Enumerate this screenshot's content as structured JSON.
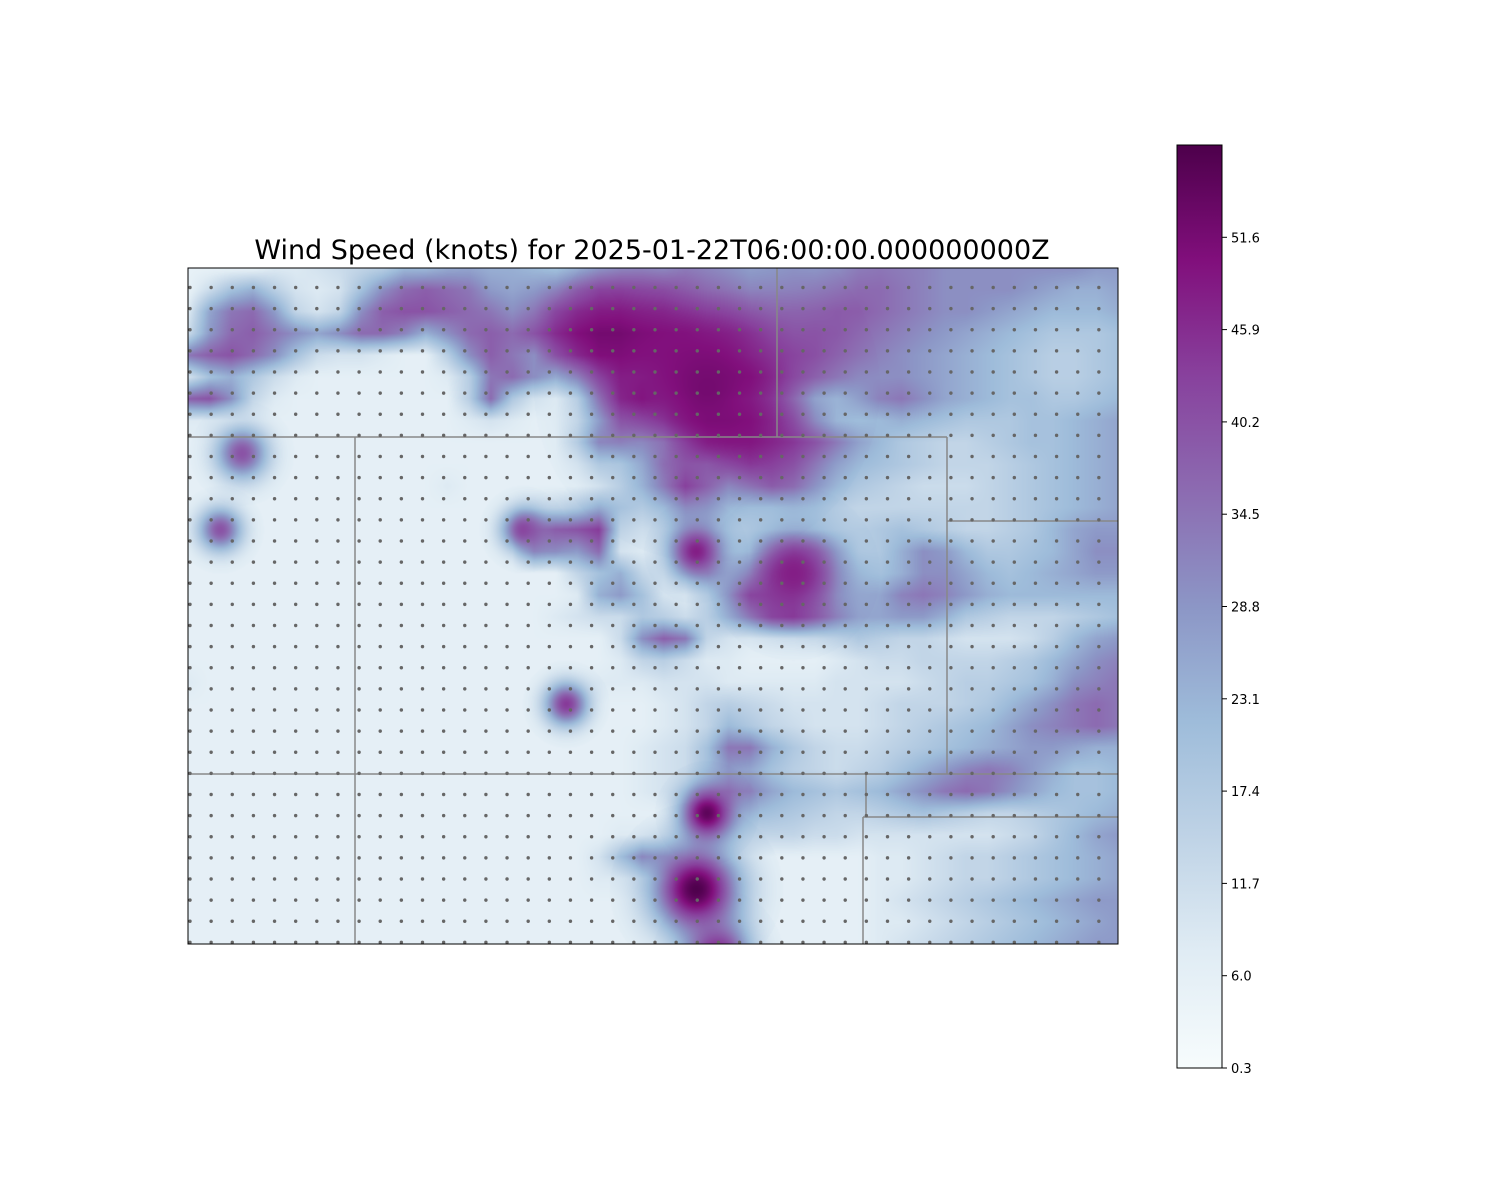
{
  "chart_data": {
    "type": "heatmap",
    "title": "Wind Speed (knots) for 2025-01-22T06:00:00.000000000Z",
    "xlabel": "",
    "ylabel": "",
    "colorbar": {
      "min": 0.3,
      "max": 57.3,
      "ticks": [
        0.3,
        6.0,
        11.7,
        17.4,
        23.1,
        28.8,
        34.5,
        40.2,
        45.9,
        51.6
      ],
      "tick_labels": [
        "0.3",
        "6.0",
        "11.7",
        "17.4",
        "23.1",
        "28.8",
        "34.5",
        "40.2",
        "45.9",
        "51.6"
      ],
      "colormap": "BuPu",
      "colors": [
        "#f7fcfd",
        "#e0ecf4",
        "#bfd3e6",
        "#9ebcda",
        "#8c96c6",
        "#8c6bb1",
        "#88419d",
        "#810f7c",
        "#4d004b"
      ]
    },
    "grid_points": {
      "columns": 44,
      "rows": 32,
      "marker_color": "#666666"
    },
    "boundary_color": "#888888",
    "field_description_rows": [
      [
        5,
        5,
        5,
        5,
        8,
        8,
        10,
        12,
        14,
        16,
        22,
        22,
        25,
        26,
        24,
        24,
        22,
        20,
        24,
        28,
        30,
        30,
        28,
        30,
        28,
        26,
        24,
        26,
        28,
        28,
        30,
        33,
        34,
        33,
        32,
        30,
        30,
        30,
        30,
        30,
        30,
        30,
        28,
        28
      ],
      [
        5,
        12,
        20,
        24,
        16,
        10,
        8,
        10,
        20,
        30,
        36,
        38,
        36,
        34,
        28,
        26,
        28,
        32,
        38,
        42,
        42,
        40,
        38,
        34,
        30,
        28,
        26,
        28,
        30,
        32,
        34,
        36,
        36,
        34,
        32,
        30,
        30,
        30,
        30,
        28,
        26,
        24,
        24,
        26
      ],
      [
        8,
        26,
        34,
        36,
        28,
        14,
        10,
        14,
        30,
        38,
        40,
        40,
        38,
        36,
        34,
        30,
        34,
        42,
        46,
        48,
        48,
        46,
        44,
        40,
        36,
        34,
        32,
        32,
        34,
        36,
        38,
        38,
        36,
        34,
        32,
        30,
        30,
        28,
        26,
        24,
        22,
        22,
        22,
        24
      ],
      [
        12,
        28,
        36,
        38,
        34,
        30,
        26,
        30,
        36,
        36,
        32,
        24,
        30,
        36,
        38,
        36,
        40,
        46,
        50,
        52,
        52,
        50,
        48,
        46,
        42,
        40,
        38,
        36,
        36,
        38,
        38,
        36,
        34,
        32,
        30,
        28,
        26,
        24,
        22,
        20,
        18,
        18,
        18,
        20
      ],
      [
        34,
        38,
        40,
        36,
        30,
        20,
        12,
        10,
        10,
        8,
        6,
        6,
        16,
        30,
        38,
        34,
        30,
        40,
        46,
        50,
        50,
        48,
        46,
        44,
        42,
        40,
        38,
        38,
        38,
        38,
        36,
        34,
        32,
        30,
        28,
        26,
        24,
        22,
        20,
        18,
        16,
        16,
        18,
        20
      ],
      [
        10,
        20,
        24,
        18,
        12,
        8,
        6,
        6,
        6,
        6,
        6,
        6,
        8,
        16,
        34,
        36,
        30,
        24,
        30,
        40,
        46,
        44,
        42,
        40,
        40,
        42,
        44,
        40,
        36,
        34,
        32,
        30,
        30,
        30,
        28,
        26,
        24,
        22,
        20,
        18,
        16,
        16,
        18,
        20
      ],
      [
        38,
        40,
        30,
        14,
        8,
        6,
        6,
        6,
        6,
        6,
        6,
        6,
        6,
        16,
        36,
        18,
        10,
        6,
        12,
        30,
        44,
        46,
        38,
        32,
        30,
        34,
        38,
        36,
        28,
        20,
        20,
        26,
        32,
        34,
        30,
        26,
        24,
        22,
        20,
        20,
        18,
        18,
        20,
        22
      ],
      [
        8,
        8,
        6,
        6,
        6,
        6,
        6,
        6,
        6,
        6,
        6,
        6,
        6,
        8,
        10,
        8,
        6,
        6,
        10,
        22,
        34,
        32,
        30,
        36,
        44,
        46,
        46,
        42,
        36,
        26,
        20,
        20,
        22,
        24,
        22,
        20,
        18,
        18,
        18,
        20,
        20,
        22,
        24,
        26
      ],
      [
        6,
        6,
        6,
        6,
        6,
        6,
        6,
        6,
        6,
        6,
        6,
        6,
        6,
        6,
        6,
        6,
        6,
        6,
        14,
        28,
        26,
        18,
        16,
        28,
        40,
        44,
        46,
        44,
        42,
        38,
        32,
        26,
        22,
        18,
        16,
        14,
        14,
        16,
        18,
        20,
        20,
        22,
        24,
        26
      ],
      [
        6,
        6,
        6,
        6,
        6,
        6,
        6,
        6,
        6,
        6,
        6,
        6,
        6,
        6,
        6,
        6,
        6,
        6,
        8,
        14,
        12,
        16,
        26,
        30,
        28,
        34,
        40,
        40,
        38,
        32,
        26,
        22,
        20,
        18,
        16,
        14,
        14,
        14,
        16,
        18,
        20,
        22,
        24,
        26
      ],
      [
        6,
        6,
        6,
        6,
        6,
        6,
        6,
        6,
        6,
        6,
        6,
        6,
        8,
        6,
        6,
        6,
        6,
        6,
        6,
        8,
        12,
        18,
        28,
        40,
        32,
        24,
        30,
        36,
        34,
        28,
        22,
        18,
        16,
        14,
        12,
        12,
        12,
        14,
        16,
        18,
        20,
        22,
        24,
        26
      ],
      [
        6,
        6,
        6,
        6,
        6,
        6,
        6,
        6,
        6,
        6,
        6,
        6,
        6,
        6,
        6,
        6,
        10,
        14,
        18,
        24,
        18,
        14,
        18,
        26,
        24,
        18,
        16,
        16,
        18,
        18,
        16,
        14,
        14,
        14,
        14,
        14,
        14,
        14,
        16,
        18,
        20,
        22,
        24,
        26
      ],
      [
        6,
        6,
        6,
        6,
        6,
        6,
        6,
        6,
        6,
        6,
        6,
        6,
        6,
        6,
        6,
        8,
        30,
        38,
        40,
        44,
        14,
        10,
        12,
        16,
        16,
        14,
        12,
        10,
        10,
        12,
        14,
        16,
        18,
        20,
        18,
        16,
        14,
        14,
        16,
        18,
        22,
        26,
        28,
        28
      ],
      [
        6,
        6,
        6,
        6,
        6,
        6,
        6,
        6,
        6,
        6,
        6,
        6,
        6,
        6,
        6,
        6,
        28,
        30,
        28,
        36,
        10,
        8,
        10,
        14,
        16,
        14,
        12,
        20,
        28,
        26,
        20,
        16,
        18,
        24,
        30,
        28,
        22,
        18,
        18,
        20,
        22,
        26,
        30,
        30
      ],
      [
        6,
        6,
        6,
        6,
        6,
        6,
        6,
        6,
        6,
        6,
        6,
        6,
        6,
        6,
        6,
        6,
        6,
        6,
        14,
        20,
        24,
        14,
        10,
        14,
        22,
        22,
        24,
        32,
        34,
        30,
        22,
        20,
        20,
        24,
        30,
        30,
        26,
        22,
        20,
        22,
        24,
        26,
        28,
        28
      ],
      [
        6,
        6,
        6,
        6,
        6,
        6,
        6,
        6,
        6,
        6,
        6,
        6,
        6,
        6,
        6,
        6,
        6,
        6,
        8,
        24,
        28,
        20,
        10,
        8,
        16,
        28,
        40,
        38,
        36,
        30,
        24,
        24,
        26,
        32,
        34,
        32,
        28,
        24,
        22,
        22,
        22,
        22,
        22,
        22
      ],
      [
        6,
        6,
        6,
        6,
        6,
        6,
        6,
        6,
        6,
        6,
        6,
        6,
        6,
        6,
        6,
        6,
        6,
        8,
        10,
        12,
        12,
        18,
        16,
        12,
        16,
        24,
        32,
        40,
        42,
        36,
        30,
        26,
        26,
        28,
        28,
        24,
        18,
        16,
        14,
        14,
        14,
        16,
        18,
        20
      ],
      [
        6,
        6,
        6,
        6,
        6,
        6,
        6,
        6,
        6,
        6,
        6,
        6,
        6,
        6,
        6,
        6,
        6,
        6,
        6,
        6,
        12,
        30,
        38,
        34,
        14,
        10,
        8,
        8,
        8,
        10,
        14,
        18,
        16,
        14,
        14,
        12,
        10,
        10,
        10,
        12,
        16,
        22,
        26,
        28
      ],
      [
        6,
        6,
        6,
        6,
        6,
        6,
        6,
        6,
        6,
        6,
        6,
        6,
        6,
        6,
        6,
        6,
        6,
        6,
        6,
        6,
        8,
        14,
        16,
        12,
        8,
        8,
        6,
        6,
        6,
        6,
        8,
        10,
        12,
        12,
        14,
        14,
        14,
        14,
        16,
        18,
        22,
        26,
        30,
        32
      ],
      [
        8,
        6,
        6,
        6,
        6,
        6,
        6,
        6,
        6,
        6,
        6,
        6,
        6,
        6,
        6,
        6,
        6,
        6,
        6,
        8,
        8,
        8,
        10,
        10,
        10,
        8,
        8,
        8,
        8,
        8,
        10,
        10,
        10,
        10,
        12,
        14,
        16,
        16,
        18,
        20,
        24,
        30,
        32,
        34
      ],
      [
        6,
        6,
        6,
        6,
        6,
        6,
        6,
        6,
        6,
        6,
        6,
        6,
        6,
        6,
        6,
        6,
        6,
        6,
        6,
        6,
        6,
        6,
        8,
        10,
        14,
        16,
        14,
        12,
        10,
        10,
        10,
        10,
        12,
        14,
        14,
        14,
        16,
        18,
        22,
        26,
        30,
        34,
        36,
        34
      ],
      [
        6,
        6,
        6,
        6,
        6,
        6,
        6,
        6,
        6,
        6,
        6,
        6,
        6,
        6,
        6,
        6,
        6,
        6,
        6,
        6,
        6,
        6,
        8,
        10,
        14,
        22,
        18,
        14,
        12,
        10,
        10,
        10,
        12,
        14,
        16,
        18,
        20,
        22,
        26,
        30,
        32,
        34,
        36,
        34
      ],
      [
        6,
        6,
        6,
        6,
        6,
        6,
        6,
        6,
        6,
        6,
        6,
        6,
        6,
        6,
        6,
        6,
        6,
        6,
        6,
        6,
        6,
        8,
        10,
        12,
        20,
        34,
        34,
        24,
        18,
        14,
        12,
        12,
        14,
        16,
        18,
        20,
        22,
        24,
        26,
        28,
        28,
        26,
        24,
        24
      ],
      [
        6,
        6,
        6,
        6,
        6,
        6,
        6,
        6,
        6,
        6,
        6,
        6,
        6,
        6,
        6,
        6,
        6,
        6,
        6,
        6,
        6,
        8,
        10,
        12,
        20,
        28,
        26,
        20,
        16,
        14,
        12,
        14,
        16,
        20,
        24,
        28,
        32,
        34,
        32,
        28,
        24,
        20,
        20,
        22
      ],
      [
        6,
        6,
        6,
        6,
        6,
        6,
        6,
        6,
        6,
        6,
        6,
        6,
        6,
        6,
        6,
        6,
        6,
        6,
        6,
        6,
        6,
        8,
        10,
        12,
        18,
        30,
        32,
        26,
        22,
        20,
        18,
        20,
        22,
        26,
        30,
        34,
        36,
        34,
        30,
        26,
        22,
        20,
        20,
        22
      ],
      [
        6,
        6,
        6,
        6,
        6,
        6,
        6,
        6,
        6,
        6,
        6,
        6,
        6,
        6,
        6,
        6,
        6,
        6,
        6,
        6,
        6,
        6,
        6,
        8,
        12,
        18,
        22,
        20,
        18,
        16,
        14,
        14,
        16,
        18,
        20,
        18,
        16,
        14,
        14,
        16,
        18,
        20,
        22,
        24
      ],
      [
        6,
        6,
        6,
        6,
        6,
        6,
        6,
        6,
        6,
        6,
        6,
        6,
        6,
        6,
        6,
        6,
        6,
        6,
        6,
        6,
        8,
        8,
        8,
        8,
        10,
        12,
        14,
        14,
        14,
        12,
        12,
        10,
        10,
        10,
        10,
        10,
        10,
        10,
        12,
        14,
        18,
        22,
        26,
        28
      ],
      [
        6,
        6,
        6,
        6,
        6,
        6,
        6,
        6,
        6,
        6,
        6,
        6,
        6,
        6,
        6,
        6,
        6,
        6,
        6,
        10,
        20,
        28,
        18,
        8,
        6,
        6,
        6,
        6,
        6,
        6,
        6,
        6,
        8,
        8,
        10,
        12,
        14,
        14,
        16,
        18,
        20,
        22,
        24,
        26
      ],
      [
        6,
        6,
        6,
        6,
        6,
        6,
        6,
        6,
        6,
        6,
        6,
        6,
        6,
        6,
        6,
        6,
        6,
        6,
        6,
        8,
        8,
        8,
        6,
        6,
        6,
        6,
        6,
        6,
        6,
        6,
        6,
        6,
        8,
        8,
        10,
        12,
        14,
        14,
        16,
        18,
        20,
        22,
        24,
        26
      ],
      [
        6,
        6,
        6,
        6,
        6,
        6,
        6,
        6,
        6,
        6,
        6,
        6,
        6,
        6,
        6,
        6,
        6,
        6,
        6,
        6,
        6,
        6,
        6,
        6,
        6,
        6,
        6,
        6,
        6,
        6,
        6,
        6,
        8,
        10,
        12,
        14,
        16,
        18,
        20,
        22,
        24,
        26,
        28,
        28
      ],
      [
        6,
        6,
        6,
        6,
        6,
        6,
        6,
        6,
        6,
        6,
        6,
        6,
        6,
        6,
        6,
        6,
        6,
        6,
        6,
        6,
        6,
        6,
        6,
        6,
        6,
        6,
        6,
        6,
        6,
        6,
        6,
        6,
        8,
        8,
        10,
        12,
        14,
        16,
        18,
        20,
        22,
        24,
        26,
        28
      ],
      [
        6,
        6,
        6,
        6,
        6,
        6,
        6,
        6,
        6,
        6,
        6,
        6,
        6,
        6,
        6,
        6,
        6,
        6,
        6,
        6,
        6,
        6,
        6,
        6,
        6,
        6,
        6,
        6,
        6,
        6,
        6,
        6,
        8,
        10,
        12,
        14,
        16,
        18,
        20,
        22,
        24,
        26,
        28,
        28
      ]
    ],
    "hotspots": [
      {
        "col": 24.0,
        "row": 5.5,
        "value": 52,
        "radius": 4.0
      },
      {
        "col": 23.5,
        "row": 28.5,
        "value": 57,
        "radius": 2.0
      },
      {
        "col": 24.0,
        "row": 25.0,
        "value": 55,
        "radius": 1.2
      },
      {
        "col": 24.5,
        "row": 31.5,
        "value": 48,
        "radius": 1.5
      },
      {
        "col": 2.5,
        "row": 8.5,
        "value": 40,
        "radius": 1.2
      },
      {
        "col": 1.5,
        "row": 12.0,
        "value": 40,
        "radius": 1.0
      },
      {
        "col": 15.5,
        "row": 12.0,
        "value": 42,
        "radius": 1.0
      },
      {
        "col": 23.5,
        "row": 13.0,
        "value": 48,
        "radius": 1.2
      },
      {
        "col": 28.0,
        "row": 14.0,
        "value": 48,
        "radius": 2.0
      },
      {
        "col": 17.5,
        "row": 20.0,
        "value": 44,
        "radius": 1.0
      }
    ]
  }
}
